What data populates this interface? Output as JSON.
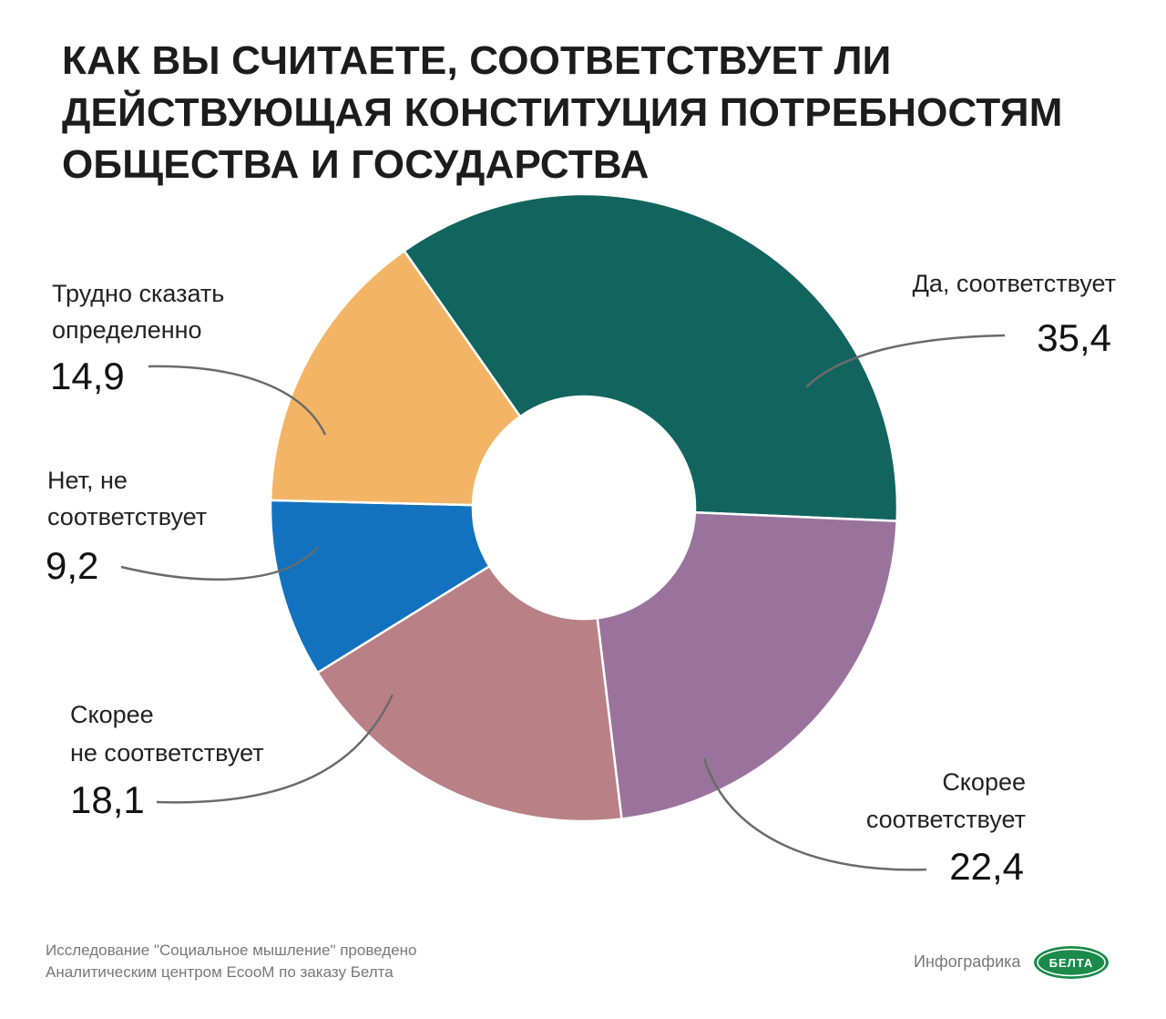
{
  "chart_data": {
    "type": "pie",
    "title": "КАК ВЫ СЧИТАЕТЕ, СООТВЕТСТВУЕТ ЛИ ДЕЙСТВУЮЩАЯ КОНСТИТУЦИЯ ПОТРЕБНОСТЯМ ОБЩЕСТВА И ГОСУДАРСТВА",
    "categories": [
      "Да, соответствует",
      "Скорее соответствует",
      "Скорее не соответствует",
      "Нет, не соответствует",
      "Трудно сказать определенно"
    ],
    "values": [
      35.4,
      22.4,
      18.1,
      9.2,
      14.9
    ],
    "value_labels": [
      "35,4",
      "22,4",
      "18,1",
      "9,2",
      "14,9"
    ],
    "colors": [
      "#12645f",
      "#9a739c",
      "#b98085",
      "#1272bf",
      "#f3b466"
    ],
    "donut": true,
    "labels": {
      "yes": "Да, соответствует",
      "rather_yes_1": "Скорее",
      "rather_yes_2": "соответствует",
      "rather_no_1": "Скорее",
      "rather_no_2": "не соответствует",
      "no_1": "Нет, не",
      "no_2": "соответствует",
      "hard_1": "Трудно сказать",
      "hard_2": "определенно"
    }
  },
  "footer": {
    "line1": "Исследование \"Социальное мышление\" проведено",
    "line2": "Аналитическим центром EcooM по заказу Белта",
    "credit": "Инфографика",
    "logo_text": "БЕЛТА"
  },
  "colors": {
    "leader_line": "#6b6b6b",
    "logo": "#1b8a4a"
  }
}
